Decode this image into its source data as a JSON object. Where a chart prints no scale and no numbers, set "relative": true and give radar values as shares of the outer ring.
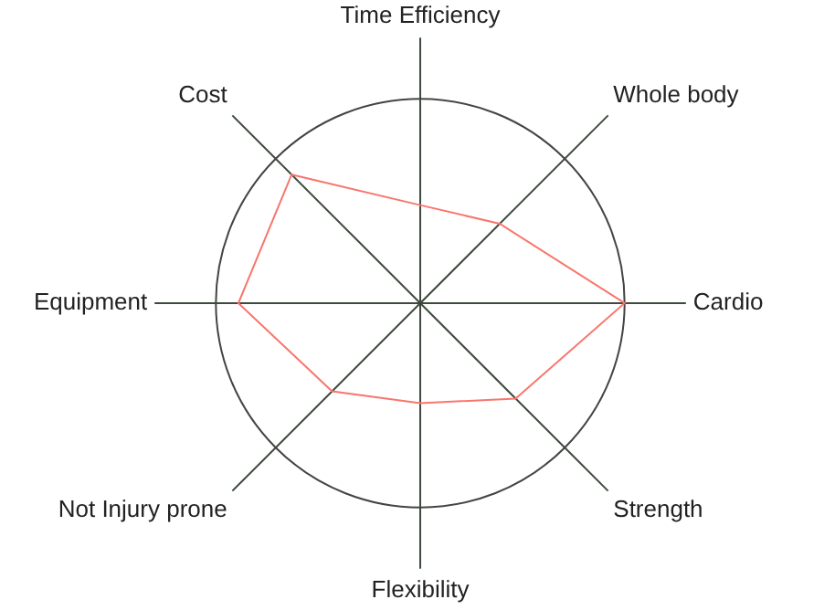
{
  "chart_data": {
    "type": "radar",
    "relative": true,
    "grid": true,
    "categories": [
      "Time Efficiency",
      "Whole body",
      "Cardio",
      "Strength",
      "Flexibility",
      "Not Injury prone",
      "Equipment",
      "Cost"
    ],
    "series": [
      {
        "color": "#f8766d",
        "values": [
          0.48,
          0.55,
          1,
          0.66,
          0.49,
          0.61,
          0.89,
          0.89
        ]
      }
    ]
  }
}
